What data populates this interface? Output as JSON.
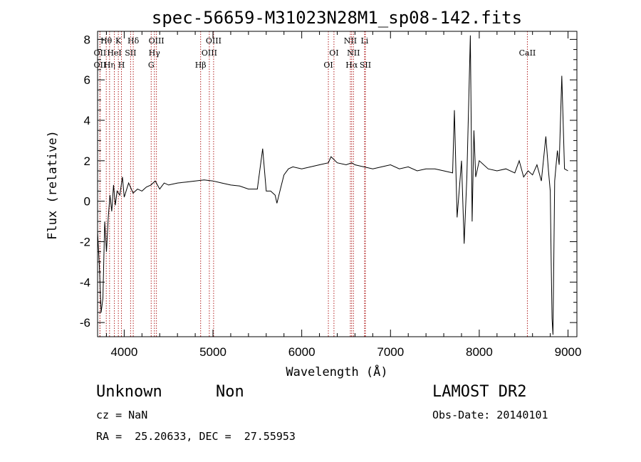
{
  "chart_data": {
    "type": "line",
    "title": "spec-56659-M31023N28M1_sp08-142.fits",
    "xlabel": "Wavelength (Å)",
    "ylabel": "Flux (relative)",
    "xlim": [
      3700,
      9100
    ],
    "ylim": [
      -6.7,
      8.4
    ],
    "x_ticks": [
      4000,
      5000,
      6000,
      7000,
      8000,
      9000
    ],
    "y_ticks": [
      -6,
      -4,
      -2,
      0,
      2,
      4,
      6,
      8
    ],
    "grid": false,
    "line_color": "#000000",
    "marker_color": "#b22222",
    "spectrum": {
      "x": [
        3700,
        3720,
        3740,
        3760,
        3780,
        3800,
        3820,
        3840,
        3860,
        3880,
        3900,
        3920,
        3950,
        3980,
        4000,
        4050,
        4100,
        4150,
        4200,
        4250,
        4300,
        4350,
        4400,
        4450,
        4500,
        4600,
        4700,
        4800,
        4900,
        5000,
        5100,
        5200,
        5300,
        5400,
        5500,
        5560,
        5600,
        5650,
        5700,
        5720,
        5760,
        5800,
        5850,
        5900,
        6000,
        6100,
        6200,
        6300,
        6330,
        6400,
        6500,
        6563,
        6600,
        6700,
        6800,
        6900,
        7000,
        7100,
        7200,
        7300,
        7400,
        7500,
        7600,
        7700,
        7720,
        7750,
        7800,
        7830,
        7860,
        7900,
        7920,
        7940,
        7960,
        8000,
        8100,
        8200,
        8300,
        8400,
        8450,
        8500,
        8550,
        8600,
        8650,
        8700,
        8750,
        8780,
        8800,
        8810,
        8820,
        8830,
        8850,
        8880,
        8900,
        8930,
        8960,
        9000
      ],
      "y": [
        -1.5,
        -3.2,
        -5.5,
        -4.8,
        -1.0,
        -2.5,
        -0.8,
        0.3,
        -0.5,
        0.8,
        -0.2,
        0.5,
        0.3,
        1.2,
        0.2,
        0.9,
        0.4,
        0.6,
        0.5,
        0.7,
        0.8,
        1.0,
        0.6,
        0.9,
        0.8,
        0.9,
        0.95,
        1.0,
        1.05,
        1.0,
        0.9,
        0.8,
        0.75,
        0.6,
        0.6,
        2.6,
        0.5,
        0.5,
        0.3,
        -0.1,
        0.6,
        1.3,
        1.6,
        1.7,
        1.6,
        1.7,
        1.8,
        1.9,
        2.2,
        1.9,
        1.8,
        1.9,
        1.8,
        1.7,
        1.6,
        1.7,
        1.8,
        1.6,
        1.7,
        1.5,
        1.6,
        1.6,
        1.5,
        1.4,
        4.5,
        -0.8,
        2.0,
        -2.1,
        1.2,
        8.2,
        -1.0,
        3.5,
        1.2,
        2.0,
        1.6,
        1.5,
        1.6,
        1.4,
        2.0,
        1.2,
        1.5,
        1.3,
        1.8,
        1.0,
        3.2,
        1.5,
        0.5,
        -3.0,
        -5.8,
        -6.6,
        1.0,
        2.5,
        1.8,
        6.2,
        1.6,
        1.5
      ]
    },
    "line_markers": [
      {
        "x": 3798,
        "label": "Hθ",
        "row": 0
      },
      {
        "x": 3727,
        "label": "OII",
        "row": 1
      },
      {
        "x": 3727,
        "label": "OII",
        "row": 2
      },
      {
        "x": 3835,
        "label": "Hη",
        "row": 2
      },
      {
        "x": 3889,
        "label": "HeI",
        "row": 1
      },
      {
        "x": 3934,
        "label": "K",
        "row": 0
      },
      {
        "x": 3969,
        "label": "H",
        "row": 2
      },
      {
        "x": 4072,
        "label": "SII",
        "row": 1
      },
      {
        "x": 4102,
        "label": "Hδ",
        "row": 0
      },
      {
        "x": 4304,
        "label": "G",
        "row": 2
      },
      {
        "x": 4340,
        "label": "Hγ",
        "row": 1
      },
      {
        "x": 4363,
        "label": "OIII",
        "row": 0
      },
      {
        "x": 4861,
        "label": "Hβ",
        "row": 2
      },
      {
        "x": 4959,
        "label": "OIII",
        "row": 1
      },
      {
        "x": 5007,
        "label": "OIII",
        "row": 0
      },
      {
        "x": 6300,
        "label": "OI",
        "row": 2
      },
      {
        "x": 6363,
        "label": "OI",
        "row": 1
      },
      {
        "x": 6548,
        "label": "NII",
        "row": 0
      },
      {
        "x": 6563,
        "label": "Hα",
        "row": 2
      },
      {
        "x": 6583,
        "label": "NII",
        "row": 1
      },
      {
        "x": 6708,
        "label": "Li",
        "row": 0
      },
      {
        "x": 6717,
        "label": "SII",
        "row": 2
      },
      {
        "x": 8542,
        "label": "CaII",
        "row": 1
      }
    ]
  },
  "info": {
    "class_name": "Unknown",
    "subclass": "Non",
    "cz": "cz = NaN",
    "radec": "RA =  25.20633, DEC =  27.55953",
    "survey": "LAMOST DR2",
    "obs_date": "Obs-Date: 20140101"
  }
}
